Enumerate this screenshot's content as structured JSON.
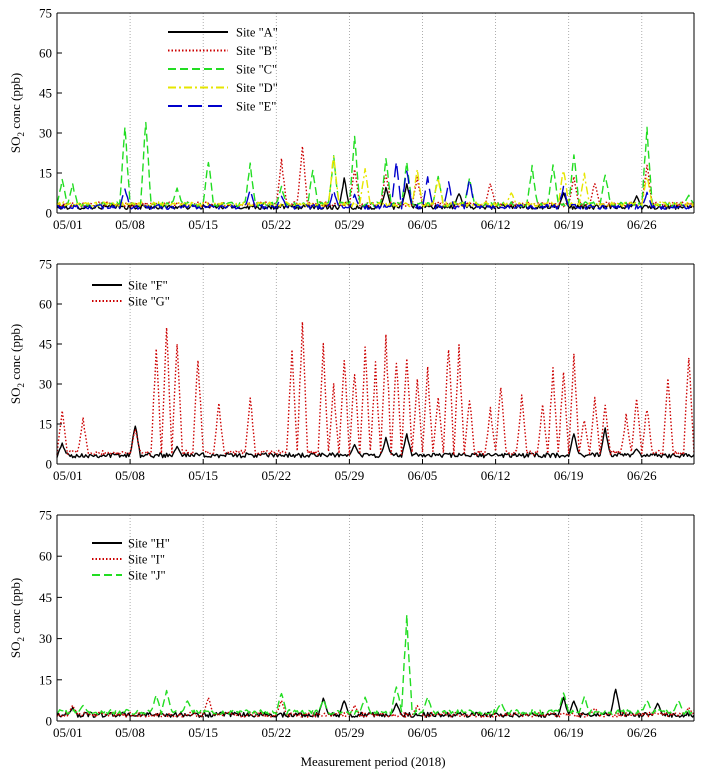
{
  "figure": {
    "xlabel": "Measurement period (2018)"
  },
  "chart_data": [
    {
      "type": "line",
      "panel": "top",
      "ylabel_main": "SO",
      "ylabel_sub": "2",
      "ylabel_rest": " conc (ppb)",
      "ylim": [
        0,
        75
      ],
      "yticks": [
        0,
        15,
        30,
        45,
        60,
        75
      ],
      "xlim": [
        "05/01",
        "07/01"
      ],
      "xticks": [
        "05/01",
        "05/08",
        "05/15",
        "05/22",
        "05/29",
        "06/05",
        "06/12",
        "06/19",
        "06/26"
      ],
      "grid": "vertical dotted at x ticks",
      "legend_position": "top-left",
      "series": [
        {
          "name": "Site \"A\"",
          "color": "#000000",
          "style": "solid",
          "base": 2,
          "peaks": [
            [
              "05/28",
              14
            ],
            [
              "06/01",
              10
            ],
            [
              "06/03",
              12
            ],
            [
              "06/08",
              8
            ],
            [
              "06/18",
              8
            ],
            [
              "06/25",
              7
            ]
          ]
        },
        {
          "name": "Site \"B\"",
          "color": "#cc0000",
          "style": "dotted",
          "base": 3,
          "peaks": [
            [
              "05/22",
              21
            ],
            [
              "05/24",
              26
            ],
            [
              "05/29",
              18
            ],
            [
              "06/01",
              16
            ],
            [
              "06/04",
              14
            ],
            [
              "06/11",
              12
            ],
            [
              "06/19",
              14
            ],
            [
              "06/21",
              12
            ],
            [
              "06/26",
              20
            ]
          ]
        },
        {
          "name": "Site \"C\"",
          "color": "#22dd22",
          "style": "dashed",
          "base": 3,
          "peaks": [
            [
              "05/01",
              13
            ],
            [
              "05/02",
              11
            ],
            [
              "05/07",
              35
            ],
            [
              "05/09",
              37
            ],
            [
              "05/12",
              10
            ],
            [
              "05/15",
              21
            ],
            [
              "05/19",
              20
            ],
            [
              "05/22",
              10
            ],
            [
              "05/25",
              17
            ],
            [
              "05/27",
              22
            ],
            [
              "05/29",
              30
            ],
            [
              "06/01",
              22
            ],
            [
              "06/03",
              20
            ],
            [
              "06/06",
              15
            ],
            [
              "06/09",
              14
            ],
            [
              "06/15",
              18
            ],
            [
              "06/17",
              20
            ],
            [
              "06/19",
              24
            ],
            [
              "06/22",
              16
            ],
            [
              "06/26",
              34
            ],
            [
              "06/30",
              7
            ]
          ]
        },
        {
          "name": "Site \"D\"",
          "color": "#e6e600",
          "style": "dashdot",
          "base": 3,
          "peaks": [
            [
              "05/27",
              24
            ],
            [
              "05/30",
              18
            ],
            [
              "06/04",
              17
            ],
            [
              "06/06",
              14
            ],
            [
              "06/13",
              8
            ],
            [
              "06/18",
              18
            ],
            [
              "06/20",
              15
            ],
            [
              "06/26",
              15
            ]
          ]
        },
        {
          "name": "Site \"E\"",
          "color": "#0000cc",
          "style": "longdash",
          "base": 2,
          "peaks": [
            [
              "05/07",
              10
            ],
            [
              "05/19",
              9
            ],
            [
              "05/22",
              7
            ],
            [
              "05/27",
              9
            ],
            [
              "05/29",
              7
            ],
            [
              "06/02",
              20
            ],
            [
              "06/03",
              18
            ],
            [
              "06/05",
              14
            ],
            [
              "06/07",
              12
            ],
            [
              "06/09",
              13
            ],
            [
              "06/18",
              10
            ],
            [
              "06/26",
              8
            ]
          ]
        }
      ]
    },
    {
      "type": "line",
      "panel": "middle",
      "ylabel_main": "SO",
      "ylabel_sub": "2",
      "ylabel_rest": " conc (ppb)",
      "ylim": [
        0,
        75
      ],
      "yticks": [
        0,
        15,
        30,
        45,
        60,
        75
      ],
      "xlim": [
        "05/01",
        "07/01"
      ],
      "xticks": [
        "05/01",
        "05/08",
        "05/15",
        "05/22",
        "05/29",
        "06/05",
        "06/12",
        "06/19",
        "06/26"
      ],
      "grid": "vertical dotted at x ticks",
      "legend_position": "top-left",
      "series": [
        {
          "name": "Site \"F\"",
          "color": "#000000",
          "style": "solid",
          "base": 3,
          "peaks": [
            [
              "05/01",
              8
            ],
            [
              "05/08",
              16
            ],
            [
              "05/12",
              7
            ],
            [
              "05/29",
              8
            ],
            [
              "06/01",
              10
            ],
            [
              "06/03",
              12
            ],
            [
              "06/19",
              12
            ],
            [
              "06/22",
              14
            ],
            [
              "06/25",
              6
            ]
          ]
        },
        {
          "name": "Site \"G\"",
          "color": "#cc0000",
          "style": "dotted",
          "base": 4,
          "peaks": [
            [
              "05/01",
              21
            ],
            [
              "05/03",
              18
            ],
            [
              "05/08",
              14
            ],
            [
              "05/10",
              46
            ],
            [
              "05/11",
              55
            ],
            [
              "05/12",
              50
            ],
            [
              "05/14",
              43
            ],
            [
              "05/16",
              24
            ],
            [
              "05/19",
              27
            ],
            [
              "05/23",
              48
            ],
            [
              "05/24",
              58
            ],
            [
              "05/26",
              46
            ],
            [
              "05/27",
              31
            ],
            [
              "05/28",
              43
            ],
            [
              "05/29",
              37
            ],
            [
              "05/30",
              46
            ],
            [
              "05/31",
              39
            ],
            [
              "06/01",
              52
            ],
            [
              "06/02",
              41
            ],
            [
              "06/03",
              45
            ],
            [
              "06/04",
              34
            ],
            [
              "06/05",
              38
            ],
            [
              "06/06",
              27
            ],
            [
              "06/07",
              49
            ],
            [
              "06/08",
              46
            ],
            [
              "06/09",
              26
            ],
            [
              "06/11",
              22
            ],
            [
              "06/12",
              32
            ],
            [
              "06/14",
              27
            ],
            [
              "06/16",
              23
            ],
            [
              "06/17",
              38
            ],
            [
              "06/18",
              37
            ],
            [
              "06/19",
              44
            ],
            [
              "06/20",
              18
            ],
            [
              "06/21",
              26
            ],
            [
              "06/22",
              23
            ],
            [
              "06/24",
              19
            ],
            [
              "06/25",
              26
            ],
            [
              "06/26",
              23
            ],
            [
              "06/28",
              34
            ],
            [
              "06/30",
              44
            ]
          ]
        }
      ]
    },
    {
      "type": "line",
      "panel": "bottom",
      "ylabel_main": "SO",
      "ylabel_sub": "2",
      "ylabel_rest": " conc (ppb)",
      "ylim": [
        0,
        75
      ],
      "yticks": [
        0,
        15,
        30,
        45,
        60,
        75
      ],
      "xlim": [
        "05/01",
        "07/01"
      ],
      "xticks": [
        "05/01",
        "05/08",
        "05/15",
        "05/22",
        "05/29",
        "06/05",
        "06/12",
        "06/19",
        "06/26"
      ],
      "grid": "vertical dotted at x ticks",
      "legend_position": "top-left",
      "series": [
        {
          "name": "Site \"H\"",
          "color": "#000000",
          "style": "solid",
          "base": 2,
          "peaks": [
            [
              "05/02",
              5
            ],
            [
              "05/26",
              9
            ],
            [
              "05/28",
              8
            ],
            [
              "06/02",
              7
            ],
            [
              "06/18",
              9
            ],
            [
              "06/19",
              8
            ],
            [
              "06/23",
              13
            ],
            [
              "06/27",
              7
            ]
          ]
        },
        {
          "name": "Site \"I\"",
          "color": "#cc0000",
          "style": "dotted",
          "base": 2,
          "peaks": [
            [
              "05/02",
              6
            ],
            [
              "05/15",
              9
            ],
            [
              "05/22",
              8
            ],
            [
              "05/29",
              6
            ],
            [
              "06/04",
              6
            ],
            [
              "06/21",
              5
            ],
            [
              "06/30",
              5
            ]
          ]
        },
        {
          "name": "Site \"J\"",
          "color": "#22dd22",
          "style": "dashed",
          "base": 3,
          "peaks": [
            [
              "05/03",
              6
            ],
            [
              "05/10",
              10
            ],
            [
              "05/11",
              12
            ],
            [
              "05/13",
              8
            ],
            [
              "05/22",
              11
            ],
            [
              "05/26",
              8
            ],
            [
              "05/30",
              9
            ],
            [
              "06/02",
              14
            ],
            [
              "06/03",
              42
            ],
            [
              "06/05",
              9
            ],
            [
              "06/12",
              7
            ],
            [
              "06/18",
              11
            ],
            [
              "06/20",
              9
            ],
            [
              "06/26",
              8
            ],
            [
              "06/29",
              8
            ]
          ]
        }
      ]
    }
  ]
}
